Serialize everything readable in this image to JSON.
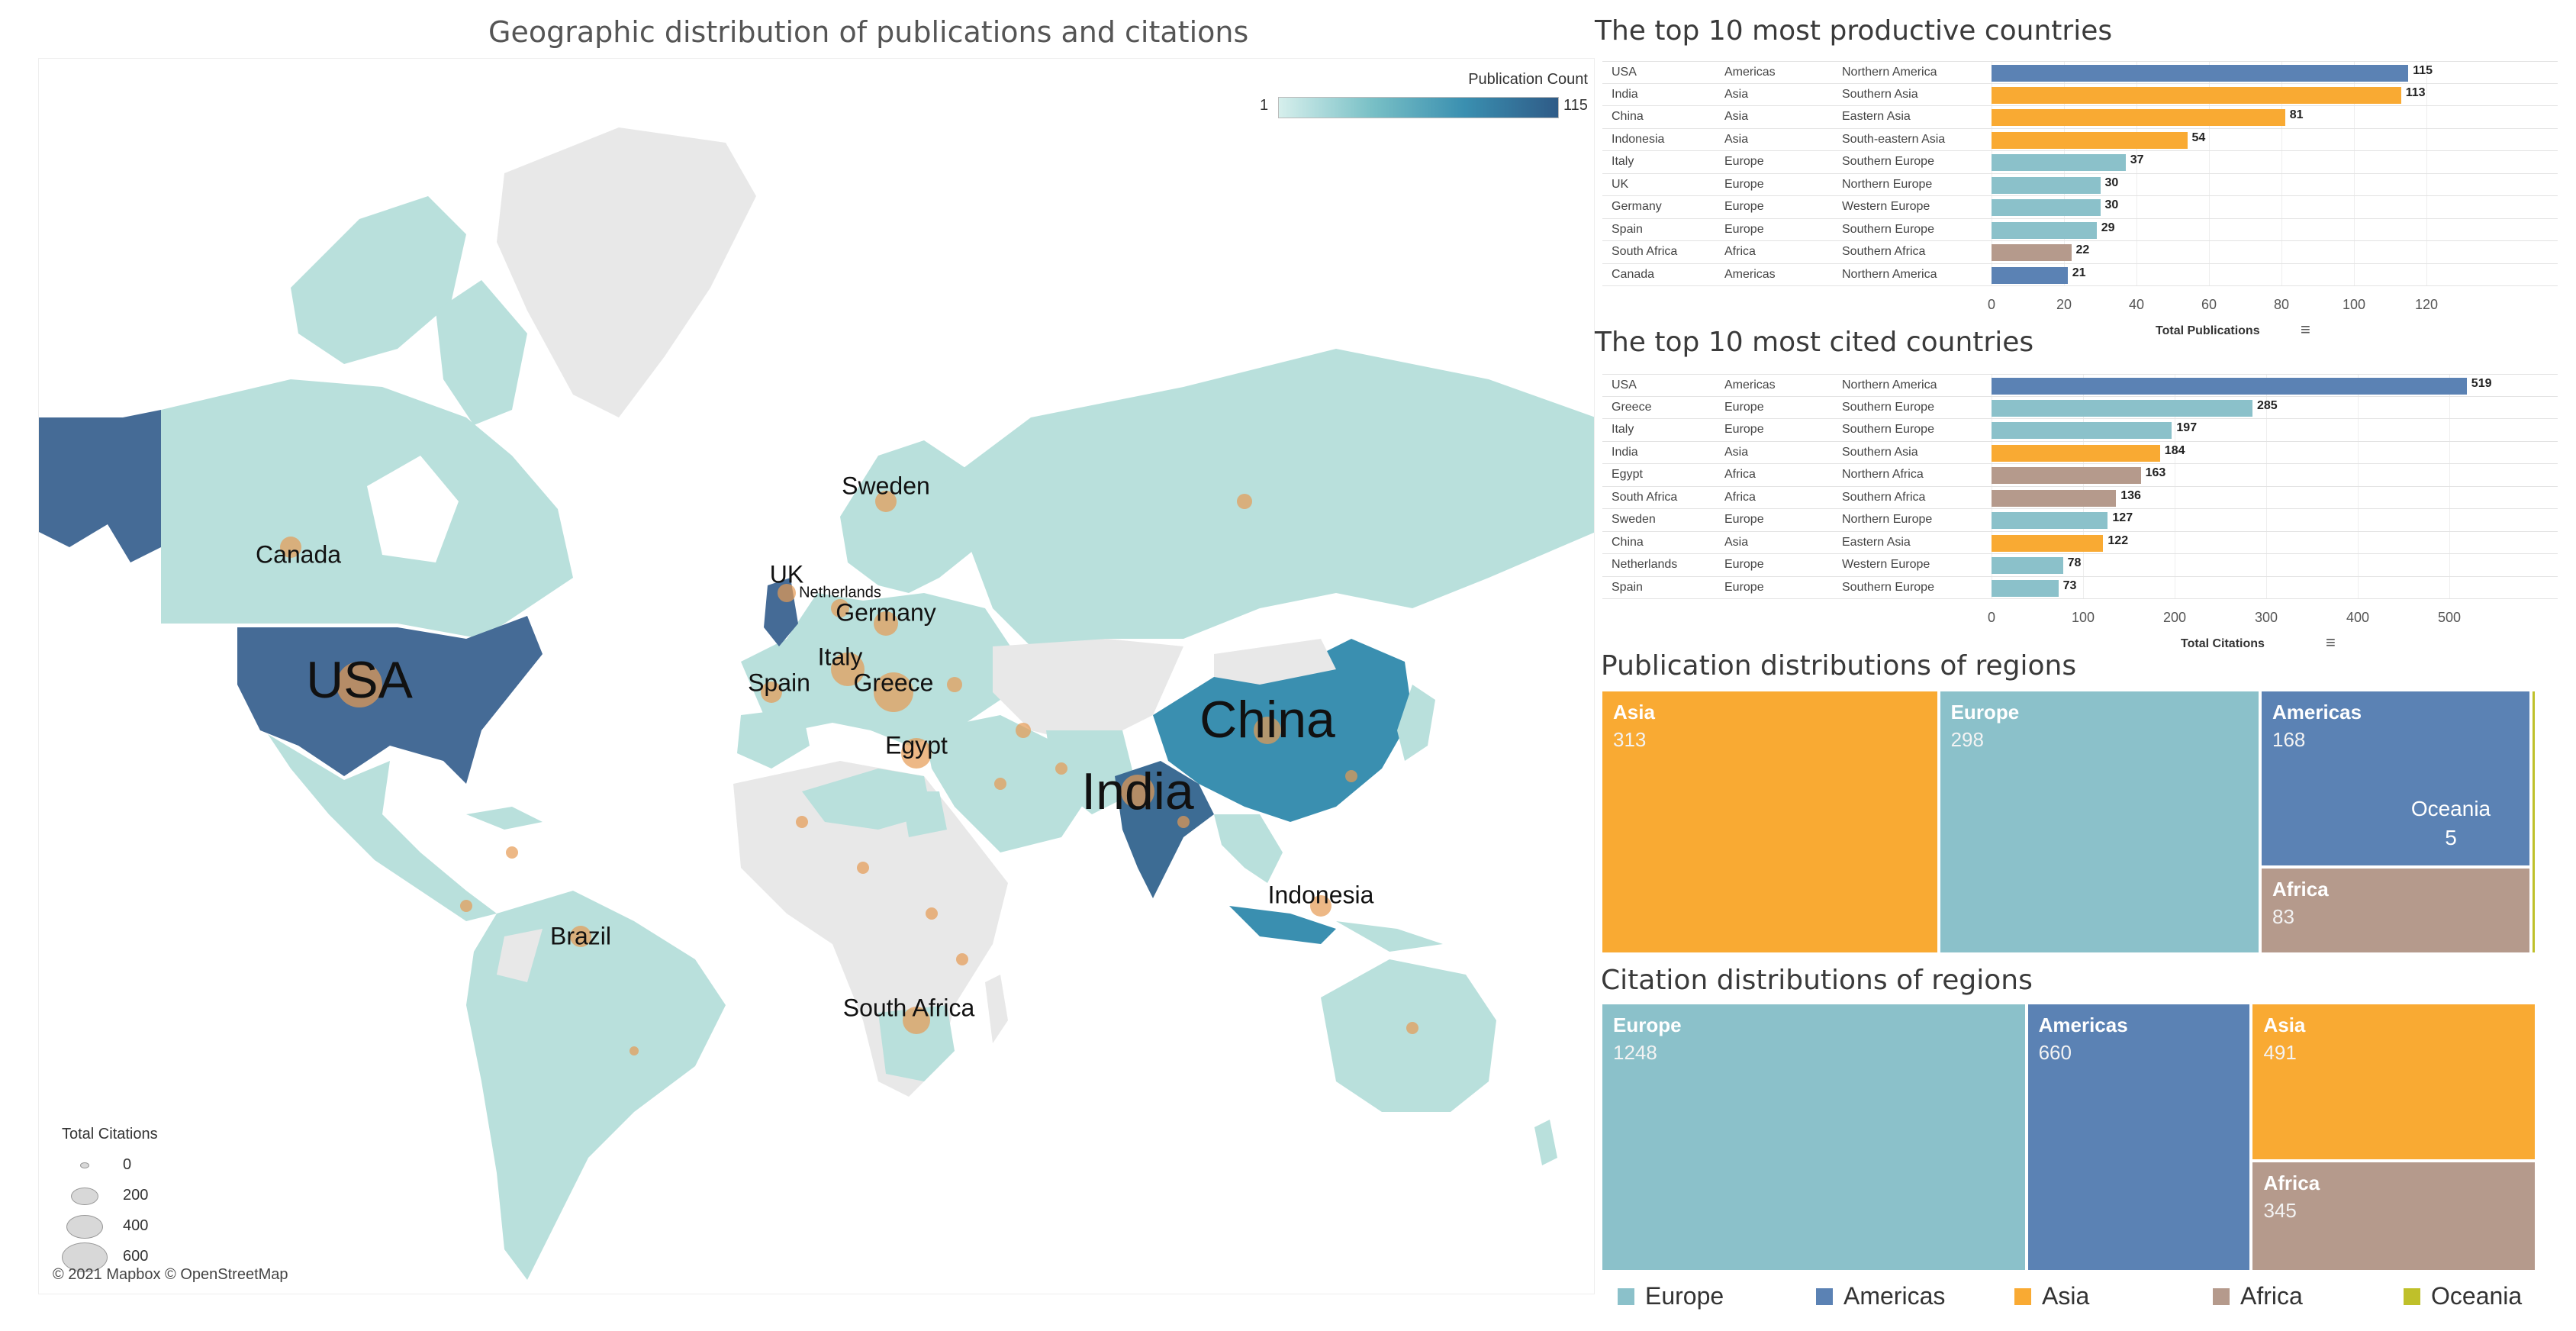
{
  "colors": {
    "Europe": "#8BC1CA",
    "Americas": "#5B82B4",
    "Asia": "#F9AA33",
    "Africa": "#B59A8C",
    "Oceania": "#BFC02A",
    "land_light": "#b9e0dc",
    "land_none": "#e8e8e8",
    "usa": "#456b96",
    "china": "#3a8fb0",
    "india": "#3d6c94",
    "bubble": "#e59a52"
  },
  "map": {
    "title": "Geographic distribution of publications and citations",
    "pub_legend_title": "Publication Count",
    "pub_legend_min": "1",
    "pub_legend_max": "115",
    "citation_legend_title": "Total Citations",
    "citation_legend_values": [
      "0",
      "200",
      "400",
      "600"
    ],
    "copyright": "© 2021 Mapbox © OpenStreetMap",
    "country_labels": [
      {
        "name": "USA",
        "size": "large"
      },
      {
        "name": "Canada",
        "size": "medium"
      },
      {
        "name": "Brazil",
        "size": "medium"
      },
      {
        "name": "UK",
        "size": "medium"
      },
      {
        "name": "Netherlands",
        "size": "small"
      },
      {
        "name": "Germany",
        "size": "medium"
      },
      {
        "name": "Sweden",
        "size": "medium"
      },
      {
        "name": "Spain",
        "size": "medium"
      },
      {
        "name": "Italy",
        "size": "medium"
      },
      {
        "name": "Greece",
        "size": "medium"
      },
      {
        "name": "Egypt",
        "size": "medium"
      },
      {
        "name": "South Africa",
        "size": "medium"
      },
      {
        "name": "China",
        "size": "large"
      },
      {
        "name": "India",
        "size": "large"
      },
      {
        "name": "Indonesia",
        "size": "medium"
      }
    ]
  },
  "chart_data": [
    {
      "type": "bar",
      "title": "The top 10 most productive countries",
      "xlabel": "Total Publications",
      "xlim": [
        0,
        120
      ],
      "ticks": [
        "0",
        "20",
        "40",
        "60",
        "80",
        "100",
        "120"
      ],
      "rows": [
        {
          "country": "USA",
          "continent": "Americas",
          "region": "Northern America",
          "value": 115
        },
        {
          "country": "India",
          "continent": "Asia",
          "region": "Southern Asia",
          "value": 113
        },
        {
          "country": "China",
          "continent": "Asia",
          "region": "Eastern Asia",
          "value": 81
        },
        {
          "country": "Indonesia",
          "continent": "Asia",
          "region": "South-eastern Asia",
          "value": 54
        },
        {
          "country": "Italy",
          "continent": "Europe",
          "region": "Southern Europe",
          "value": 37
        },
        {
          "country": "UK",
          "continent": "Europe",
          "region": "Northern Europe",
          "value": 30
        },
        {
          "country": "Germany",
          "continent": "Europe",
          "region": "Western Europe",
          "value": 30
        },
        {
          "country": "Spain",
          "continent": "Europe",
          "region": "Southern Europe",
          "value": 29
        },
        {
          "country": "South Africa",
          "continent": "Africa",
          "region": "Southern Africa",
          "value": 22
        },
        {
          "country": "Canada",
          "continent": "Americas",
          "region": "Northern America",
          "value": 21
        }
      ]
    },
    {
      "type": "bar",
      "title": "The top 10 most cited countries",
      "xlabel": "Total Citations",
      "xlim": [
        0,
        530
      ],
      "ticks": [
        "0",
        "100",
        "200",
        "300",
        "400",
        "500"
      ],
      "rows": [
        {
          "country": "USA",
          "continent": "Americas",
          "region": "Northern America",
          "value": 519
        },
        {
          "country": "Greece",
          "continent": "Europe",
          "region": "Southern Europe",
          "value": 285
        },
        {
          "country": "Italy",
          "continent": "Europe",
          "region": "Southern Europe",
          "value": 197
        },
        {
          "country": "India",
          "continent": "Asia",
          "region": "Southern Asia",
          "value": 184
        },
        {
          "country": "Egypt",
          "continent": "Africa",
          "region": "Northern Africa",
          "value": 163
        },
        {
          "country": "South Africa",
          "continent": "Africa",
          "region": "Southern Africa",
          "value": 136
        },
        {
          "country": "Sweden",
          "continent": "Europe",
          "region": "Northern Europe",
          "value": 127
        },
        {
          "country": "China",
          "continent": "Asia",
          "region": "Eastern Asia",
          "value": 122
        },
        {
          "country": "Netherlands",
          "continent": "Europe",
          "region": "Western Europe",
          "value": 78
        },
        {
          "country": "Spain",
          "continent": "Europe",
          "region": "Southern Europe",
          "value": 73
        }
      ]
    },
    {
      "type": "treemap",
      "title": "Publication distributions of regions",
      "items": [
        {
          "name": "Asia",
          "value": 313
        },
        {
          "name": "Europe",
          "value": 298
        },
        {
          "name": "Americas",
          "value": 168
        },
        {
          "name": "Africa",
          "value": 83
        },
        {
          "name": "Oceania",
          "value": 5
        }
      ]
    },
    {
      "type": "treemap",
      "title": "Citation distributions of regions",
      "items": [
        {
          "name": "Europe",
          "value": 1248
        },
        {
          "name": "Americas",
          "value": 660
        },
        {
          "name": "Asia",
          "value": 491
        },
        {
          "name": "Africa",
          "value": 345
        }
      ]
    }
  ],
  "legend": [
    "Europe",
    "Americas",
    "Asia",
    "Africa",
    "Oceania"
  ]
}
